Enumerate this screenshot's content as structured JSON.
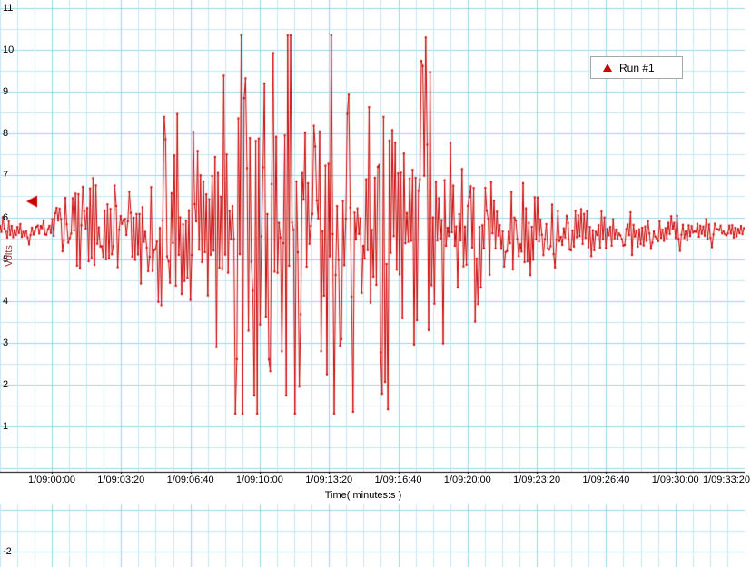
{
  "window": {
    "background": "#ffffff"
  },
  "legend": {
    "marker_color": "#cc0000"
  },
  "event_marker": {
    "color": "#cc0000",
    "value": 6.38
  },
  "chart_data": {
    "type": "line",
    "title": "",
    "xlabel": "Time( minutes:s )",
    "ylabel": "Volts",
    "x_tick_labels": [
      "1/09:00:00",
      "1/09:03:20",
      "1/09:06:40",
      "1/09:10:00",
      "1/09:13:20",
      "1/09:16:40",
      "1/09:20:00",
      "1/09:23:20",
      "1/09:26:40",
      "1/09:30:00",
      "1/09:33:20"
    ],
    "x_tick_interval_seconds": 200,
    "y_tick_values": [
      11,
      10,
      9,
      8,
      7,
      6,
      5,
      4,
      3,
      2,
      1,
      -2
    ],
    "ylim": [
      -2.5,
      11.1
    ],
    "grid": {
      "on": true,
      "minor_color": "#c3e8f4",
      "major_color": "#9ad5e9"
    },
    "series": [
      {
        "name": "Run #1",
        "color": "#cc0000",
        "marker": "dot"
      }
    ],
    "baseline": 5.65,
    "clip": [
      1.3,
      10.35
    ],
    "envelope": [
      [
        0.0,
        5.25,
        6.05
      ],
      [
        0.065,
        5.25,
        6.05
      ],
      [
        0.08,
        4.4,
        7.0
      ],
      [
        0.095,
        3.7,
        8.0
      ],
      [
        0.115,
        4.3,
        7.3
      ],
      [
        0.14,
        4.7,
        6.9
      ],
      [
        0.17,
        4.8,
        6.8
      ],
      [
        0.2,
        4.2,
        7.2
      ],
      [
        0.213,
        3.4,
        7.7
      ],
      [
        0.228,
        1.9,
        9.3
      ],
      [
        0.25,
        2.4,
        8.8
      ],
      [
        0.268,
        2.8,
        8.3
      ],
      [
        0.283,
        2.2,
        9.0
      ],
      [
        0.3,
        1.3,
        10.35
      ],
      [
        0.33,
        1.3,
        10.35
      ],
      [
        0.358,
        1.3,
        10.35
      ],
      [
        0.38,
        1.3,
        10.35
      ],
      [
        0.4,
        1.3,
        10.35
      ],
      [
        0.415,
        2.3,
        9.2
      ],
      [
        0.43,
        1.3,
        10.35
      ],
      [
        0.455,
        1.3,
        10.35
      ],
      [
        0.475,
        1.35,
        10.3
      ],
      [
        0.49,
        2.8,
        8.6
      ],
      [
        0.505,
        1.3,
        10.35
      ],
      [
        0.525,
        1.3,
        10.35
      ],
      [
        0.545,
        2.6,
        8.8
      ],
      [
        0.562,
        1.35,
        10.3
      ],
      [
        0.578,
        1.4,
        10.3
      ],
      [
        0.598,
        3.2,
        8.2
      ],
      [
        0.615,
        3.9,
        7.2
      ],
      [
        0.633,
        3.5,
        7.6
      ],
      [
        0.65,
        3.4,
        7.5
      ],
      [
        0.668,
        4.1,
        7.1
      ],
      [
        0.69,
        4.3,
        7.0
      ],
      [
        0.715,
        4.5,
        6.9
      ],
      [
        0.74,
        4.6,
        6.8
      ],
      [
        0.765,
        4.9,
        6.5
      ],
      [
        0.79,
        5.0,
        6.4
      ],
      [
        0.815,
        5.0,
        6.35
      ],
      [
        0.84,
        5.1,
        6.3
      ],
      [
        0.865,
        5.1,
        6.25
      ],
      [
        0.89,
        5.15,
        6.2
      ],
      [
        0.915,
        5.2,
        6.15
      ],
      [
        0.94,
        5.25,
        6.1
      ],
      [
        0.965,
        5.3,
        6.0
      ],
      [
        1.0,
        5.3,
        5.95
      ]
    ]
  }
}
